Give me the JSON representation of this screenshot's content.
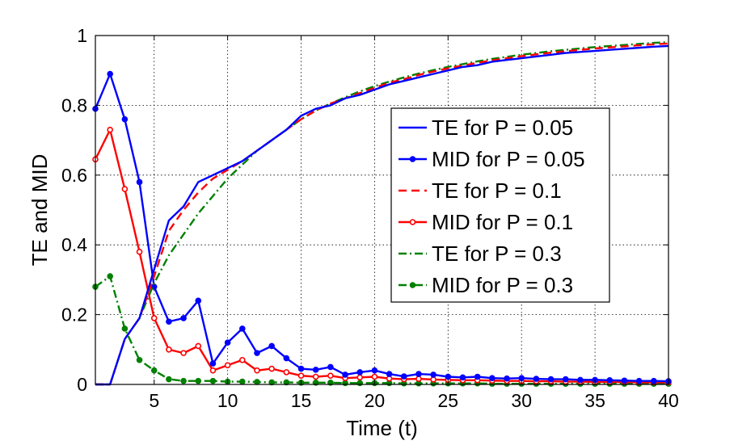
{
  "chart_data": {
    "type": "line",
    "title": "",
    "xlabel": "Time (t)",
    "ylabel": "TE and MID",
    "xlim": [
      1,
      40
    ],
    "ylim": [
      0,
      1
    ],
    "xticks": [
      5,
      10,
      15,
      20,
      25,
      30,
      35,
      40
    ],
    "yticks": [
      0,
      0.2,
      0.4,
      0.6,
      0.8,
      1
    ],
    "ytick_labels": [
      "0",
      "0.2",
      "0.4",
      "0.6",
      "0.8",
      "1"
    ],
    "grid": true,
    "legend_position": "center-right",
    "x": [
      1,
      2,
      3,
      4,
      5,
      6,
      7,
      8,
      9,
      10,
      11,
      12,
      13,
      14,
      15,
      16,
      17,
      18,
      19,
      20,
      21,
      22,
      23,
      24,
      25,
      26,
      27,
      28,
      29,
      30,
      31,
      32,
      33,
      34,
      35,
      36,
      37,
      38,
      39,
      40
    ],
    "series": [
      {
        "name": "TE for P = 0.05",
        "color": "#0000ff",
        "style": "solid",
        "marker": "none",
        "values": [
          0,
          0,
          0.13,
          0.19,
          0.33,
          0.47,
          0.51,
          0.58,
          0.6,
          0.62,
          0.64,
          0.67,
          0.7,
          0.73,
          0.77,
          0.79,
          0.8,
          0.82,
          0.83,
          0.845,
          0.86,
          0.87,
          0.88,
          0.89,
          0.9,
          0.91,
          0.915,
          0.925,
          0.93,
          0.935,
          0.94,
          0.945,
          0.95,
          0.953,
          0.956,
          0.959,
          0.962,
          0.965,
          0.968,
          0.97
        ]
      },
      {
        "name": "MID for P = 0.05",
        "color": "#0000ff",
        "style": "solid",
        "marker": "dot",
        "values": [
          0.79,
          0.89,
          0.76,
          0.58,
          0.28,
          0.18,
          0.19,
          0.24,
          0.06,
          0.12,
          0.16,
          0.09,
          0.11,
          0.075,
          0.045,
          0.042,
          0.05,
          0.028,
          0.035,
          0.04,
          0.03,
          0.023,
          0.03,
          0.028,
          0.022,
          0.02,
          0.022,
          0.018,
          0.017,
          0.018,
          0.016,
          0.015,
          0.015,
          0.013,
          0.013,
          0.012,
          0.011,
          0.01,
          0.01,
          0.009
        ]
      },
      {
        "name": "TE for P = 0.1",
        "color": "#ff0000",
        "style": "dashed",
        "marker": "none",
        "values": [
          0,
          0,
          0.13,
          0.19,
          0.31,
          0.44,
          0.5,
          0.55,
          0.59,
          0.615,
          0.64,
          0.67,
          0.7,
          0.73,
          0.76,
          0.785,
          0.805,
          0.82,
          0.835,
          0.85,
          0.865,
          0.875,
          0.887,
          0.897,
          0.906,
          0.914,
          0.922,
          0.929,
          0.935,
          0.941,
          0.946,
          0.951,
          0.955,
          0.959,
          0.963,
          0.966,
          0.969,
          0.972,
          0.975,
          0.977
        ]
      },
      {
        "name": "MID for P = 0.1",
        "color": "#ff0000",
        "style": "solid",
        "marker": "circle",
        "values": [
          0.645,
          0.73,
          0.56,
          0.38,
          0.19,
          0.1,
          0.09,
          0.11,
          0.04,
          0.055,
          0.07,
          0.04,
          0.045,
          0.035,
          0.025,
          0.022,
          0.025,
          0.018,
          0.02,
          0.022,
          0.017,
          0.015,
          0.016,
          0.014,
          0.013,
          0.012,
          0.012,
          0.011,
          0.01,
          0.01,
          0.009,
          0.009,
          0.008,
          0.008,
          0.007,
          0.007,
          0.007,
          0.006,
          0.006,
          0.006
        ]
      },
      {
        "name": "TE for P = 0.3",
        "color": "#008000",
        "style": "dashdot",
        "marker": "none",
        "values": [
          0,
          0,
          0.13,
          0.19,
          0.29,
          0.37,
          0.43,
          0.49,
          0.54,
          0.59,
          0.63,
          0.67,
          0.7,
          0.73,
          0.76,
          0.785,
          0.805,
          0.823,
          0.84,
          0.855,
          0.868,
          0.88,
          0.891,
          0.901,
          0.91,
          0.918,
          0.926,
          0.933,
          0.939,
          0.945,
          0.95,
          0.955,
          0.959,
          0.963,
          0.967,
          0.97,
          0.973,
          0.976,
          0.979,
          0.981
        ]
      },
      {
        "name": "MID for P = 0.3",
        "color": "#008000",
        "style": "dashdot",
        "marker": "dot",
        "values": [
          0.28,
          0.31,
          0.16,
          0.07,
          0.04,
          0.015,
          0.01,
          0.01,
          0.01,
          0.008,
          0.008,
          0.007,
          0.006,
          0.006,
          0.005,
          0.005,
          0.005,
          0.004,
          0.004,
          0.004,
          0.004,
          0.003,
          0.003,
          0.003,
          0.003,
          0.003,
          0.003,
          0.002,
          0.002,
          0.002,
          0.002,
          0.002,
          0.002,
          0.002,
          0.002,
          0.002,
          0.002,
          0.002,
          0.002,
          0.002
        ]
      }
    ]
  }
}
